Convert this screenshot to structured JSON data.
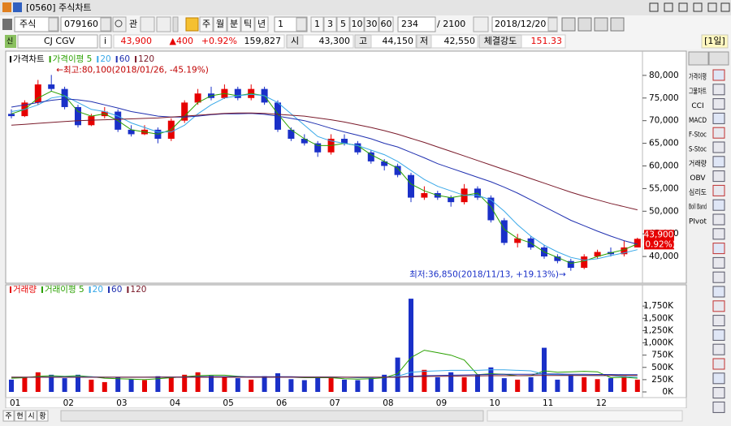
{
  "window": {
    "title": "[0560] 주식차트"
  },
  "toolbar": {
    "market": "주식",
    "code": "079160",
    "watch": "관",
    "periods": [
      "주",
      "월",
      "분",
      "틱",
      "년"
    ],
    "interval": "1",
    "minutes": [
      "1",
      "3",
      "5",
      "10",
      "30",
      "60"
    ],
    "count": "234",
    "total": "/ 2100",
    "date": "2018/12/20"
  },
  "info": {
    "badge": "신",
    "name": "CJ CGV",
    "info_button": "i",
    "price": "43,900",
    "change": "▲400",
    "change_pct": "+0.92%",
    "volume": "159,827",
    "open_label": "시",
    "open": "43,300",
    "high_label": "고",
    "high": "44,150",
    "low_label": "저",
    "low": "42,550",
    "strength_label": "체결강도",
    "strength": "151.33",
    "period": "[1일]"
  },
  "price_chart": {
    "type": "candlestick",
    "name": "가격차트",
    "up_color": "#e60000",
    "down_color": "#1a30c8",
    "months": [
      "01",
      "02",
      "03",
      "04",
      "05",
      "06",
      "07",
      "08",
      "09",
      "10",
      "11",
      "12"
    ],
    "candles": [
      [
        71500,
        72500,
        70500,
        71000
      ],
      [
        71000,
        74500,
        70800,
        74000
      ],
      [
        74000,
        79000,
        73500,
        78000
      ],
      [
        78000,
        80100,
        76500,
        77000
      ],
      [
        77000,
        77500,
        72500,
        73000
      ],
      [
        73000,
        73500,
        68500,
        69000
      ],
      [
        69000,
        71500,
        68800,
        71000
      ],
      [
        71000,
        73000,
        70500,
        72000
      ],
      [
        72000,
        72500,
        67500,
        68000
      ],
      [
        68000,
        69000,
        66500,
        67000
      ],
      [
        67000,
        69000,
        66800,
        68000
      ],
      [
        68000,
        68500,
        65000,
        66000
      ],
      [
        66000,
        70500,
        65500,
        70000
      ],
      [
        70000,
        74500,
        69500,
        74000
      ],
      [
        74000,
        77000,
        73500,
        76000
      ],
      [
        76000,
        77500,
        74500,
        75000
      ],
      [
        75000,
        78000,
        74800,
        77000
      ],
      [
        77000,
        77500,
        74500,
        75000
      ],
      [
        75000,
        78000,
        74500,
        77000
      ],
      [
        77000,
        77500,
        73500,
        74000
      ],
      [
        74000,
        74500,
        67500,
        68000
      ],
      [
        68000,
        68500,
        65500,
        66000
      ],
      [
        66000,
        67000,
        64500,
        65000
      ],
      [
        65000,
        65500,
        62000,
        63000
      ],
      [
        63000,
        67000,
        62500,
        66000
      ],
      [
        66000,
        67000,
        64500,
        65000
      ],
      [
        65000,
        65500,
        62500,
        63000
      ],
      [
        63000,
        63500,
        60500,
        61000
      ],
      [
        61000,
        61500,
        59000,
        60000
      ],
      [
        60000,
        60500,
        57500,
        58000
      ],
      [
        58000,
        58500,
        52000,
        53000
      ],
      [
        53000,
        55500,
        52500,
        54000
      ],
      [
        54000,
        54500,
        52500,
        53000
      ],
      [
        53000,
        53500,
        51000,
        52000
      ],
      [
        52000,
        56000,
        51500,
        55000
      ],
      [
        55000,
        55500,
        52500,
        53000
      ],
      [
        53000,
        53500,
        47500,
        48000
      ],
      [
        48000,
        48500,
        42500,
        43000
      ],
      [
        43000,
        45000,
        42000,
        44000
      ],
      [
        44000,
        44500,
        41500,
        42000
      ],
      [
        42000,
        42500,
        39500,
        40000
      ],
      [
        40000,
        40500,
        38500,
        39000
      ],
      [
        39000,
        39500,
        36850,
        37500
      ],
      [
        37500,
        40500,
        37200,
        40000
      ],
      [
        40000,
        41500,
        39500,
        41000
      ],
      [
        41000,
        42000,
        40000,
        40500
      ],
      [
        40500,
        43500,
        40000,
        42000
      ],
      [
        42000,
        44150,
        42000,
        43900
      ]
    ],
    "series": [
      {
        "name": "가격이평 5",
        "color": "#2aa000",
        "values": [
          71500,
          72500,
          75000,
          76500,
          75500,
          72000,
          71000,
          71500,
          70000,
          68000,
          67500,
          67000,
          68000,
          71000,
          74000,
          75500,
          76000,
          75500,
          76000,
          75500,
          71500,
          68000,
          66000,
          64500,
          64500,
          65000,
          64500,
          62500,
          61000,
          59500,
          56000,
          54500,
          53500,
          53000,
          53500,
          54000,
          51000,
          46000,
          44000,
          43000,
          41000,
          39800,
          38500,
          39000,
          40000,
          40800,
          41500,
          42800
        ]
      },
      {
        "name": "20",
        "color": "#38a8e8",
        "values": [
          72000,
          72500,
          73500,
          75000,
          75500,
          74000,
          72500,
          72000,
          71000,
          69500,
          68500,
          67500,
          67500,
          69000,
          71500,
          73500,
          75000,
          75500,
          75800,
          75500,
          74000,
          71500,
          69000,
          66500,
          65500,
          65000,
          64500,
          63500,
          62500,
          61000,
          59000,
          57000,
          55500,
          54500,
          53500,
          53500,
          52500,
          50000,
          47000,
          44500,
          42500,
          41000,
          39800,
          39200,
          39500,
          40200,
          40800,
          41500
        ]
      },
      {
        "name": "60",
        "color": "#2030b0",
        "values": [
          73000,
          73500,
          74000,
          74500,
          74800,
          74600,
          74200,
          73500,
          72800,
          72000,
          71500,
          71000,
          70800,
          70800,
          71000,
          71300,
          71500,
          71500,
          71600,
          71400,
          71000,
          70500,
          70000,
          69200,
          68300,
          67500,
          66800,
          66000,
          65000,
          64200,
          63000,
          61800,
          60500,
          59500,
          58500,
          57500,
          56500,
          55300,
          54000,
          52500,
          51000,
          49500,
          48000,
          46800,
          45600,
          44500,
          43500,
          42700
        ]
      },
      {
        "name": "120",
        "color": "#7a1a2a",
        "values": [
          69000,
          69200,
          69400,
          69600,
          69800,
          70000,
          70100,
          70200,
          70300,
          70400,
          70500,
          70600,
          70800,
          71000,
          71200,
          71400,
          71600,
          71700,
          71700,
          71600,
          71400,
          71200,
          71000,
          70600,
          70200,
          69700,
          69100,
          68500,
          67800,
          67000,
          66100,
          65200,
          64200,
          63200,
          62200,
          61200,
          60200,
          59200,
          58200,
          57200,
          56200,
          55200,
          54200,
          53300,
          52500,
          51700,
          51000,
          50300
        ]
      }
    ],
    "ylim": [
      35000,
      85000
    ],
    "yticks": [
      {
        "value": 40000,
        "label": "40,000"
      },
      {
        "value": 45000,
        "label": "45,000"
      },
      {
        "value": 50000,
        "label": "50,000"
      },
      {
        "value": 55000,
        "label": "55,000"
      },
      {
        "value": 60000,
        "label": "60,000"
      },
      {
        "value": 65000,
        "label": "65,000"
      },
      {
        "value": 70000,
        "label": "70,000"
      },
      {
        "value": 75000,
        "label": "75,000"
      },
      {
        "value": 80000,
        "label": "80,000"
      }
    ],
    "high_note": "←최고:80,100(2018/01/26, -45.19%)",
    "low_note": "최저:36,850(2018/11/13, +19.13%)→",
    "last_price": {
      "price": "43,900",
      "pct": "(0.92%)"
    }
  },
  "volume_chart": {
    "type": "bar",
    "name": "거래량",
    "color": "#e60000",
    "values": [
      250,
      300,
      400,
      350,
      280,
      350,
      250,
      200,
      300,
      260,
      240,
      320,
      300,
      350,
      400,
      330,
      300,
      280,
      250,
      320,
      380,
      260,
      240,
      300,
      280,
      250,
      240,
      300,
      350,
      700,
      1900,
      450,
      300,
      400,
      300,
      350,
      500,
      280,
      250,
      300,
      900,
      250,
      350,
      300,
      260,
      280,
      320,
      250
    ],
    "series": [
      {
        "name": "거래이평 5",
        "color": "#2aa000",
        "values": [
          280,
          290,
          320,
          330,
          320,
          330,
          310,
          280,
          270,
          260,
          250,
          270,
          290,
          310,
          330,
          340,
          340,
          320,
          300,
          300,
          310,
          300,
          290,
          290,
          290,
          270,
          260,
          270,
          290,
          370,
          700,
          850,
          800,
          750,
          650,
          350,
          370,
          360,
          330,
          330,
          430,
          400,
          410,
          420,
          410,
          290,
          300,
          280
        ]
      },
      {
        "name": "20",
        "color": "#38a8e8",
        "values": [
          300,
          300,
          300,
          310,
          310,
          310,
          310,
          300,
          300,
          300,
          300,
          300,
          300,
          300,
          310,
          310,
          310,
          310,
          300,
          300,
          300,
          300,
          300,
          300,
          300,
          300,
          290,
          290,
          300,
          320,
          400,
          420,
          430,
          440,
          440,
          440,
          450,
          450,
          440,
          430,
          360,
          350,
          340,
          340,
          330,
          330,
          310,
          300
        ]
      },
      {
        "name": "60",
        "color": "#2030b0",
        "values": [
          300,
          300,
          300,
          300,
          300,
          300,
          300,
          300,
          300,
          300,
          300,
          305,
          305,
          305,
          310,
          310,
          310,
          310,
          310,
          310,
          310,
          310,
          305,
          305,
          305,
          300,
          300,
          300,
          300,
          305,
          320,
          330,
          335,
          340,
          345,
          350,
          355,
          360,
          360,
          360,
          365,
          365,
          360,
          360,
          355,
          355,
          350,
          350
        ]
      },
      {
        "name": "120",
        "color": "#7a1a2a",
        "values": [
          300,
          300,
          300,
          300,
          300,
          300,
          300,
          300,
          300,
          300,
          300,
          300,
          300,
          300,
          300,
          300,
          300,
          300,
          300,
          300,
          300,
          300,
          300,
          300,
          300,
          300,
          300,
          300,
          300,
          300,
          310,
          315,
          320,
          320,
          325,
          325,
          330,
          330,
          330,
          335,
          335,
          335,
          335,
          335,
          335,
          335,
          335,
          335
        ]
      }
    ],
    "ylim": [
      0,
      2150
    ],
    "yticks": [
      {
        "value": 0,
        "label": "0K"
      },
      {
        "value": 250,
        "label": "250K"
      },
      {
        "value": 500,
        "label": "500K"
      },
      {
        "value": 750,
        "label": "750K"
      },
      {
        "value": 1000,
        "label": "1,000K"
      },
      {
        "value": 1250,
        "label": "1,250K"
      },
      {
        "value": 1500,
        "label": "1,500K"
      },
      {
        "value": 1750,
        "label": "1,750K"
      }
    ]
  },
  "side_tools": [
    "가격이평",
    "그물차트",
    "CCI",
    "MACD",
    "F-Stoc",
    "S-Stoc",
    "거래량",
    "OBV",
    "심리도",
    "Boll Band",
    "PIvot"
  ],
  "bottom_tabs": [
    "주",
    "현",
    "시",
    "황"
  ]
}
